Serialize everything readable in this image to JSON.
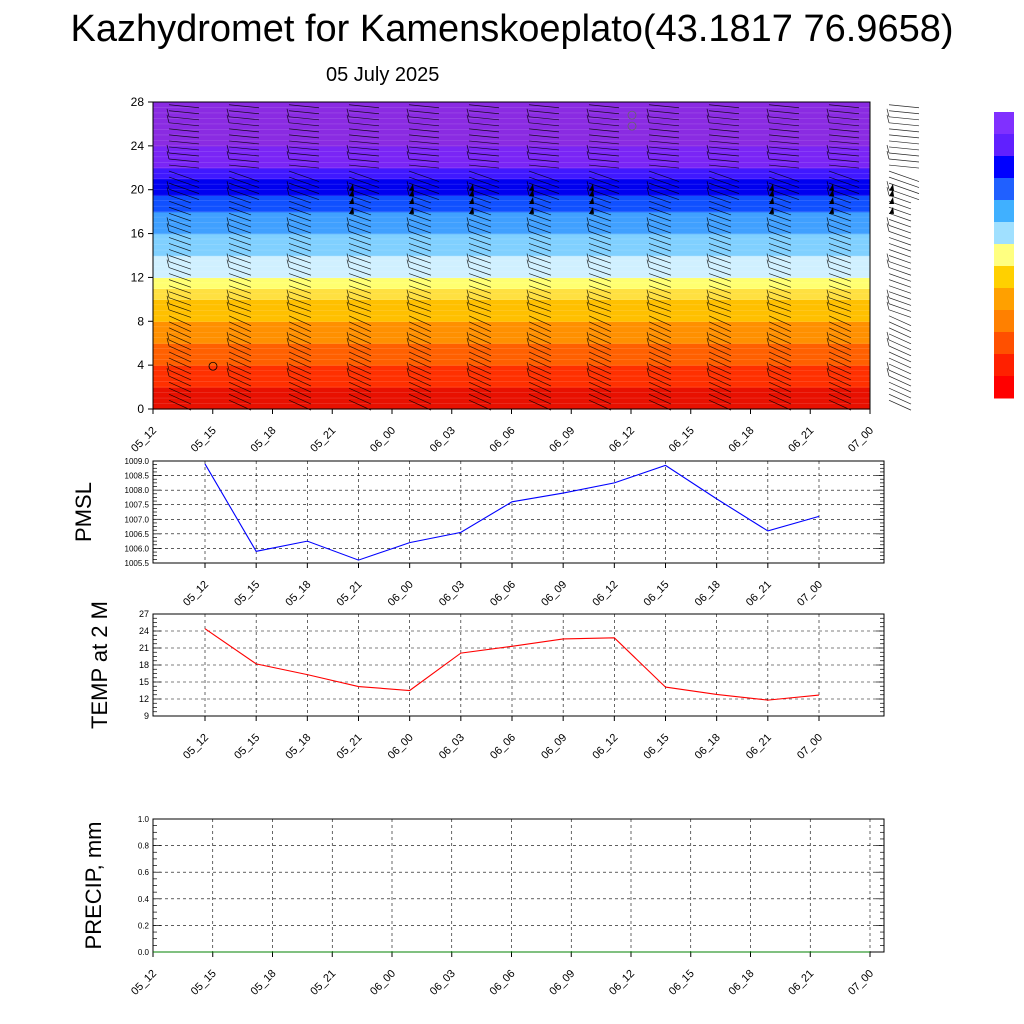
{
  "header": {
    "title": "Kazhydromet for Kamenskoeplato(43.1817 76.9658)",
    "date": "05 July 2025"
  },
  "colors": {
    "pmsl_line": "#0000ff",
    "temp_line": "#ff0000",
    "precip_line": "#008000",
    "colorbar": [
      "#ff0000",
      "#ff2000",
      "#ff5000",
      "#ff8000",
      "#ffa000",
      "#ffd000",
      "#ffff80",
      "#a0e0ff",
      "#40b0ff",
      "#2060ff",
      "#0000ff",
      "#6020ff",
      "#8030ff"
    ],
    "section_bands": [
      "#e81000",
      "#ff3000",
      "#ff6000",
      "#ff9000",
      "#ffc000",
      "#ffe040",
      "#ffff70",
      "#d0f0ff",
      "#80d0ff",
      "#40a0ff",
      "#1050ff",
      "#0000f0",
      "#4018ff",
      "#7a25f5",
      "#8a2be2",
      "#8a2be2"
    ]
  },
  "chart_data": [
    {
      "type": "heatmap",
      "name": "cross-section",
      "ylabel": "",
      "ylim": [
        0,
        28
      ],
      "yticks": [
        0,
        4,
        8,
        12,
        16,
        20,
        24,
        28
      ],
      "categories": [
        "05_12",
        "05_15",
        "05_18",
        "05_21",
        "06_00",
        "06_03",
        "06_06",
        "06_09",
        "06_12",
        "06_15",
        "06_18",
        "06_21",
        "07_00"
      ],
      "band_levels": [
        0,
        2,
        4,
        6,
        8,
        10,
        11,
        12,
        14,
        16,
        18,
        19.5,
        21,
        22,
        24,
        28
      ],
      "wind_barbs": true,
      "grid": false
    },
    {
      "type": "line",
      "ylabel": "PMSL",
      "ylim": [
        1005.5,
        1009.0
      ],
      "yticks": [
        "1005.5",
        "1006.0",
        "1006.5",
        "1007.0",
        "1007.5",
        "1008.0",
        "1008.5",
        "1009.0"
      ],
      "categories": [
        "05_12",
        "05_15",
        "05_18",
        "05_21",
        "06_00",
        "06_03",
        "06_06",
        "06_09",
        "06_12",
        "06_15",
        "06_18",
        "06_21",
        "07_00"
      ],
      "values": [
        1008.9,
        1005.9,
        1006.25,
        1005.6,
        1006.2,
        1006.55,
        1007.6,
        1007.9,
        1008.25,
        1008.85,
        1007.7,
        1006.6,
        1007.1
      ],
      "grid": true
    },
    {
      "type": "line",
      "ylabel": "TEMP at 2 M",
      "ylim": [
        9,
        27
      ],
      "yticks": [
        "9",
        "12",
        "15",
        "18",
        "21",
        "24",
        "27"
      ],
      "categories": [
        "05_12",
        "05_15",
        "05_18",
        "05_21",
        "06_00",
        "06_03",
        "06_06",
        "06_09",
        "06_12",
        "06_15",
        "06_18",
        "06_21",
        "07_00"
      ],
      "values": [
        24.4,
        18.2,
        16.3,
        14.2,
        13.5,
        20.1,
        21.3,
        22.6,
        22.8,
        14.1,
        12.8,
        11.8,
        12.7
      ],
      "grid": true
    },
    {
      "type": "line",
      "ylabel": "PRECIP, mm",
      "ylim": [
        0,
        1
      ],
      "yticks": [
        "0.0",
        "0.2",
        "0.4",
        "0.6",
        "0.8",
        "1.0"
      ],
      "categories": [
        "05_12",
        "05_15",
        "05_18",
        "05_21",
        "06_00",
        "06_03",
        "06_06",
        "06_09",
        "06_12",
        "06_15",
        "06_18",
        "06_21",
        "07_00"
      ],
      "values": [
        0,
        0,
        0,
        0,
        0,
        0,
        0,
        0,
        0,
        0,
        0,
        0,
        0
      ],
      "grid": true
    }
  ]
}
